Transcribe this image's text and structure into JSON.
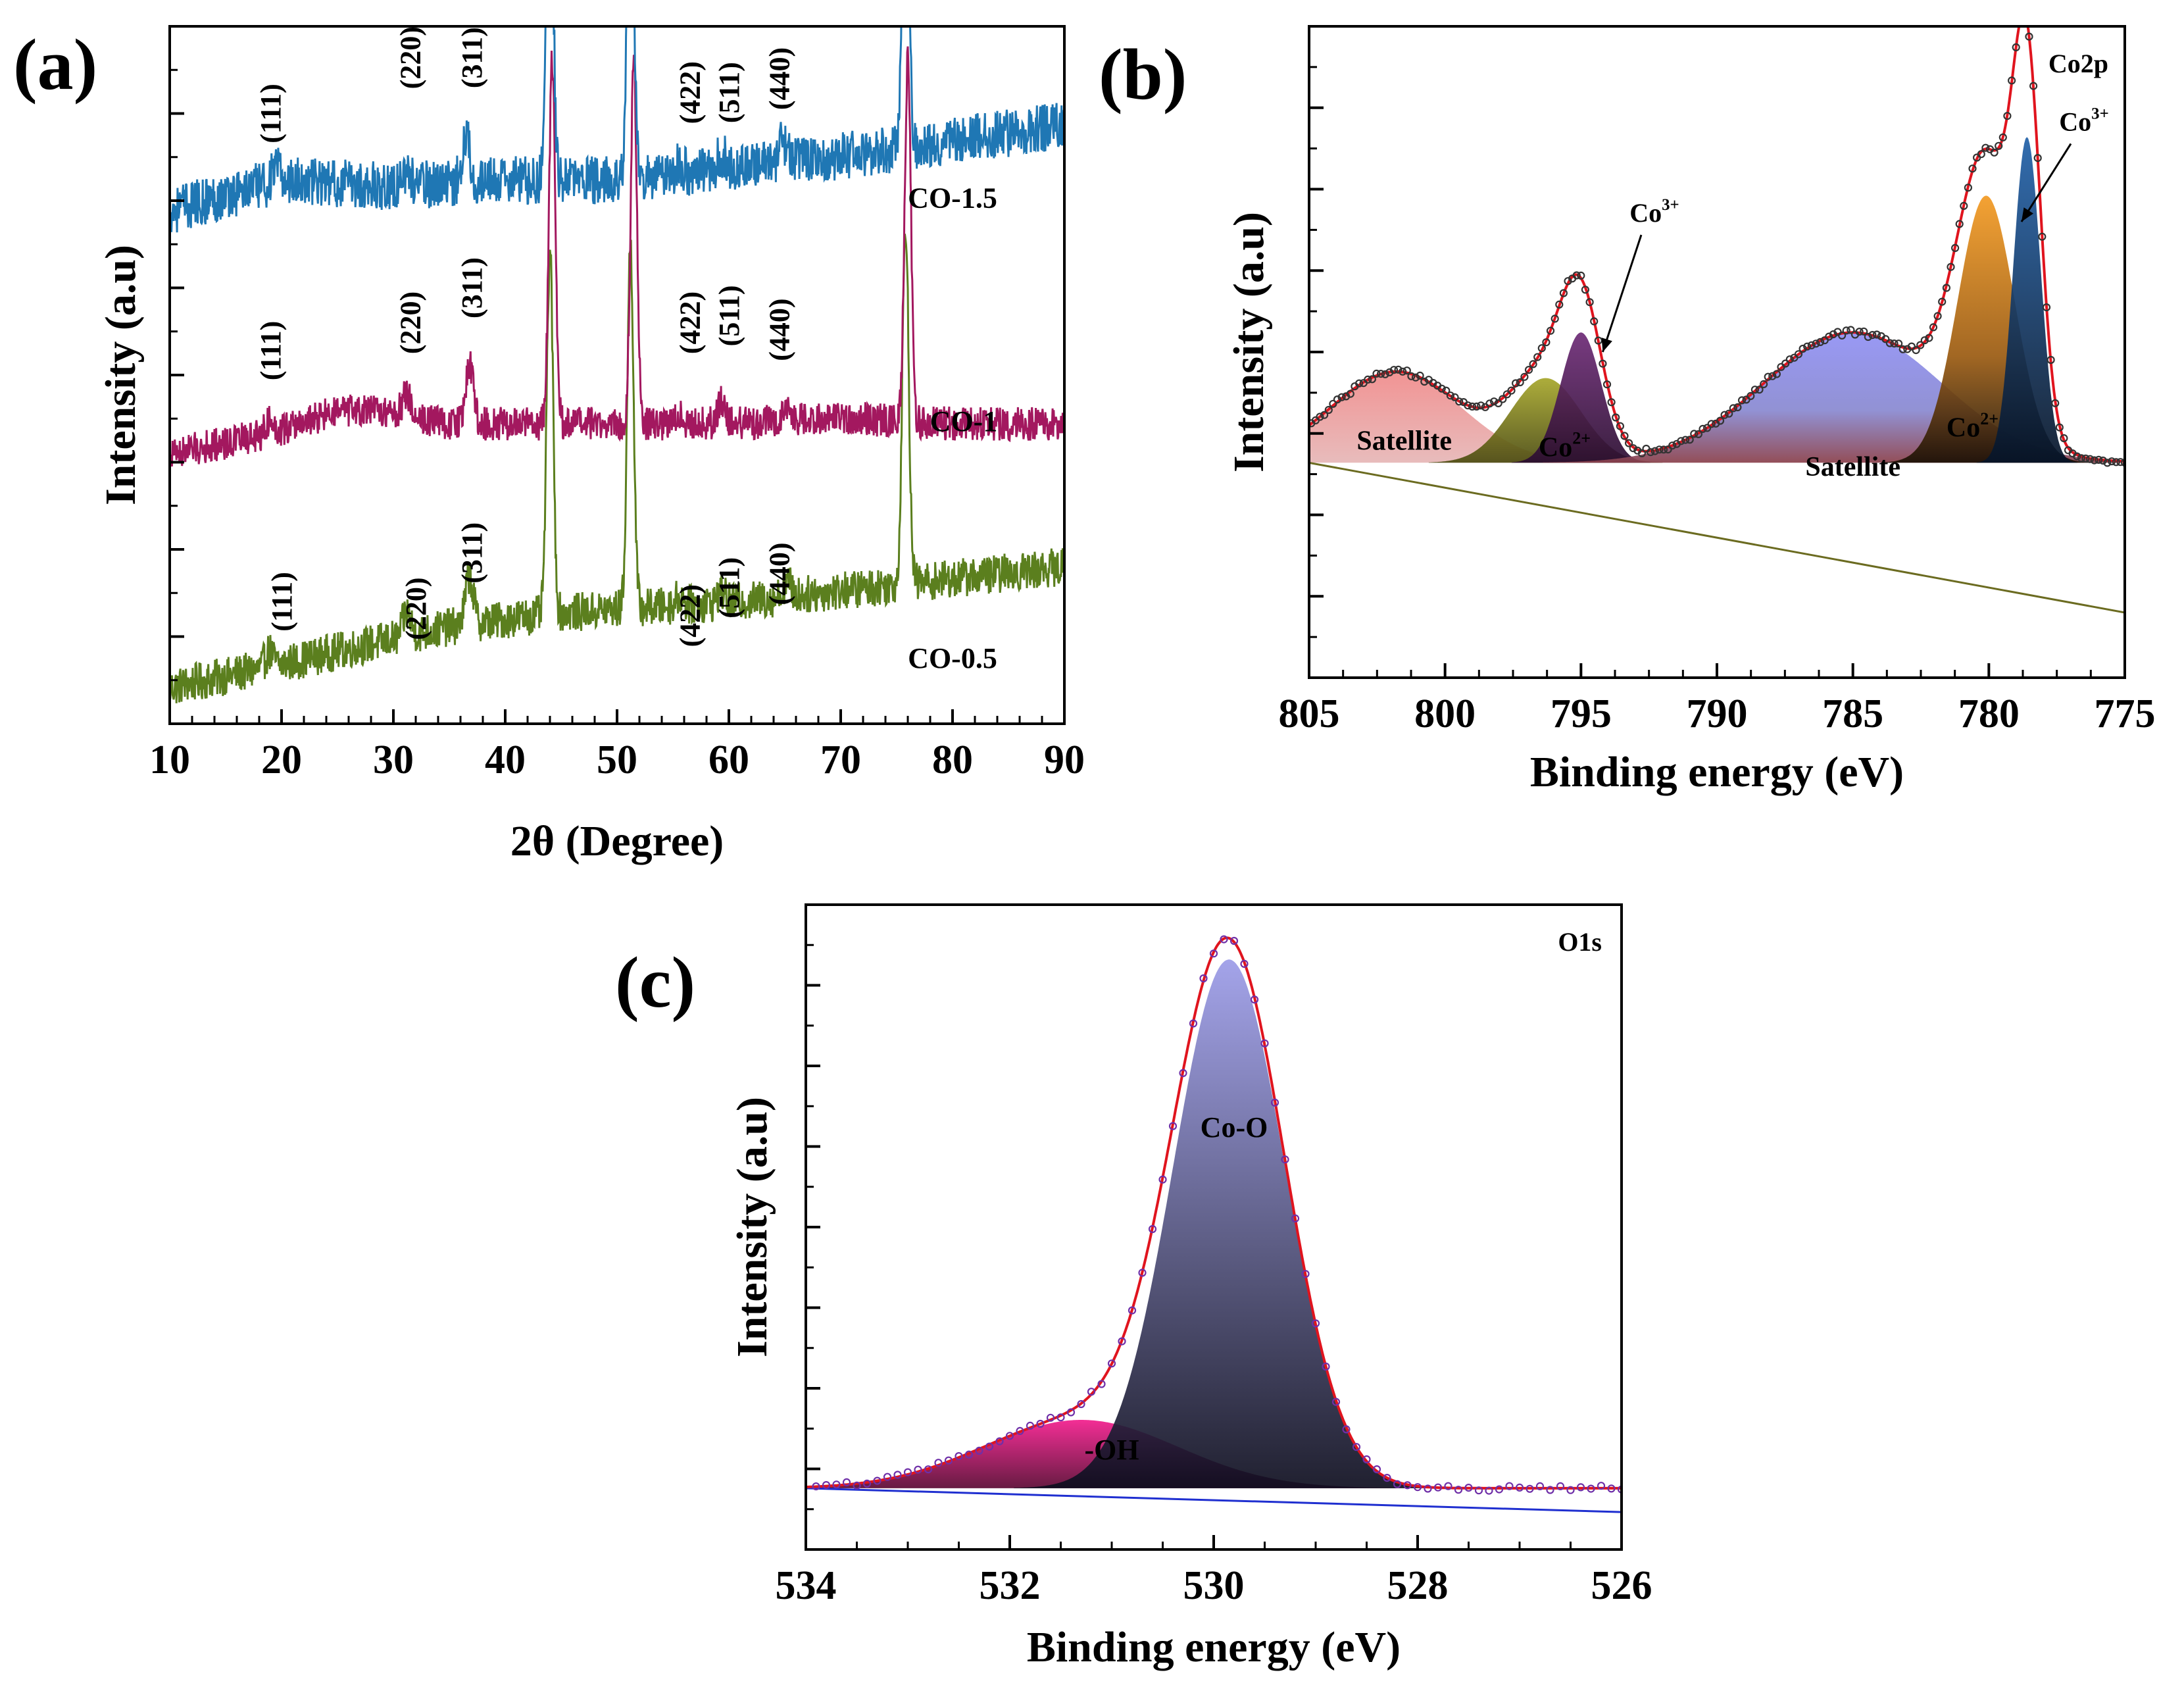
{
  "figure": {
    "panels": [
      {
        "id": "a",
        "label": "(a)"
      },
      {
        "id": "b",
        "label": "(b)"
      },
      {
        "id": "c",
        "label": "(c)"
      }
    ]
  },
  "chart_data": [
    {
      "id": "a",
      "type": "line",
      "panel_label": "(a)",
      "xlabel": "2θ (Degree)",
      "ylabel": "Intensity (a.u)",
      "xlim": [
        10,
        90
      ],
      "xticks": [
        10,
        20,
        30,
        40,
        50,
        60,
        70,
        80,
        90
      ],
      "ylim": [
        0,
        100
      ],
      "y_ticks_labeled": false,
      "grid": false,
      "series": [
        {
          "name": "CO-1.5",
          "color": "#5b7f1e",
          "offset": 66,
          "baseline": [
            [
              10,
              0
            ],
            [
              18,
              3
            ],
            [
              25,
              6
            ],
            [
              35,
              10
            ],
            [
              43,
              12
            ],
            [
              50,
              13
            ],
            [
              60,
              14
            ],
            [
              70,
              16
            ],
            [
              80,
              18
            ],
            [
              90,
              20
            ]
          ],
          "noise": 3.2,
          "peaks": [
            [
              18.9,
              2.5
            ],
            [
              31.2,
              4
            ],
            [
              36.8,
              8
            ],
            [
              44.0,
              60
            ],
            [
              51.2,
              60
            ],
            [
              55.6,
              1.5
            ],
            [
              59.3,
              2
            ],
            [
              65.2,
              2.5
            ],
            [
              75.8,
              60
            ]
          ]
        },
        {
          "name": "CO-1",
          "color": "#a3185f",
          "offset": 33,
          "baseline": [
            [
              10,
              0
            ],
            [
              18,
              3
            ],
            [
              25,
              7
            ],
            [
              30,
              7
            ],
            [
              35,
              5
            ],
            [
              43,
              5
            ],
            [
              50,
              5
            ],
            [
              60,
              5
            ],
            [
              70,
              6
            ],
            [
              80,
              5
            ],
            [
              90,
              5
            ]
          ],
          "noise": 2.8,
          "peaks": [
            [
              18.9,
              2
            ],
            [
              31.2,
              3.5
            ],
            [
              36.8,
              10
            ],
            [
              44.2,
              60
            ],
            [
              51.5,
              60
            ],
            [
              55.6,
              1.5
            ],
            [
              59.3,
              3.5
            ],
            [
              65.2,
              2.5
            ],
            [
              76.0,
              60
            ]
          ]
        },
        {
          "name": "CO-0.5",
          "color": "#1f77b4",
          "offset": 0,
          "baseline": [
            [
              10,
              0
            ],
            [
              20,
              5
            ],
            [
              30,
              4
            ],
            [
              40,
              5
            ],
            [
              50,
              5
            ],
            [
              60,
              7
            ],
            [
              70,
              9
            ],
            [
              78,
              11
            ],
            [
              90,
              14
            ]
          ],
          "noise": 4,
          "peaks": [
            [
              19.5,
              2
            ],
            [
              31.2,
              2.5
            ],
            [
              36.5,
              8
            ],
            [
              44.0,
              60
            ],
            [
              51.2,
              60
            ],
            [
              55.6,
              1.5
            ],
            [
              59.3,
              2.5
            ],
            [
              64.9,
              3.5
            ],
            [
              75.8,
              60
            ]
          ]
        }
      ],
      "annotations": [
        {
          "text": "(111)",
          "x": 19.0,
          "y": 87.5
        },
        {
          "text": "(220)",
          "x": 31.5,
          "y": 95.5
        },
        {
          "text": "(311)",
          "x": 37.0,
          "y": 95.5
        },
        {
          "text": "(422)",
          "x": 56.5,
          "y": 90.5
        },
        {
          "text": "(511)",
          "x": 60.0,
          "y": 90.5
        },
        {
          "text": "(440)",
          "x": 64.5,
          "y": 92.5
        },
        {
          "text": "(111)",
          "x": 19.0,
          "y": 53.5
        },
        {
          "text": "(220)",
          "x": 31.5,
          "y": 57.5
        },
        {
          "text": "(311)",
          "x": 37.0,
          "y": 62.5
        },
        {
          "text": "(422)",
          "x": 56.5,
          "y": 57.5
        },
        {
          "text": "(511)",
          "x": 60.0,
          "y": 58.5
        },
        {
          "text": "(440)",
          "x": 64.5,
          "y": 56.5
        },
        {
          "text": "(111)",
          "x": 20.0,
          "y": 17.5
        },
        {
          "text": "(220)",
          "x": 32.0,
          "y": 16.5
        },
        {
          "text": "(311)",
          "x": 37.0,
          "y": 24.5
        },
        {
          "text": "(422)",
          "x": 56.5,
          "y": 15.5
        },
        {
          "text": "(511)",
          "x": 60.0,
          "y": 19.5
        },
        {
          "text": "(440)",
          "x": 64.5,
          "y": 21.5
        },
        {
          "text": "CO-1.5",
          "x": 80,
          "y": 74
        },
        {
          "text": "CO-1",
          "x": 81,
          "y": 42
        },
        {
          "text": "CO-0.5",
          "x": 80,
          "y": 8
        }
      ]
    },
    {
      "id": "b",
      "type": "area",
      "panel_label": "(b)",
      "title": "Co2p",
      "xlabel": "Binding energy (eV)",
      "ylabel": "Intensity (a.u)",
      "xlim": [
        805,
        775
      ],
      "xticks": [
        805,
        800,
        795,
        790,
        785,
        780,
        775
      ],
      "ylim": [
        0,
        100
      ],
      "y_ticks_labeled": false,
      "grid": false,
      "background": [
        [
          805,
          33
        ],
        [
          775,
          10
        ]
      ],
      "components": [
        {
          "name": "Satellite",
          "center": 801.8,
          "height": 14,
          "width": 2.4,
          "color": "#e88080"
        },
        {
          "name": "Co2+",
          "center": 796.3,
          "height": 13,
          "width": 1.3,
          "color": "#8a8a20"
        },
        {
          "name": "Co3+",
          "center": 795.0,
          "height": 20,
          "width": 0.75,
          "color": "#5a1f60"
        },
        {
          "name": "Satellite",
          "center": 785.0,
          "height": 20,
          "width": 3.3,
          "color": "#8c8cf0"
        },
        {
          "name": "Co2+",
          "center": 780.1,
          "height": 41,
          "width": 1.05,
          "color": "#ee8a1a"
        },
        {
          "name": "Co3+",
          "center": 778.6,
          "height": 50,
          "width": 0.5,
          "color": "#1a4f8a"
        }
      ],
      "fit_color": "#e0141e",
      "data_color": "#333333",
      "annotations": [
        {
          "text": "Satellite",
          "x": 801.5,
          "y": 35
        },
        {
          "text": "Co2+",
          "x": 795.6,
          "y": 34
        },
        {
          "text": "Satellite",
          "x": 785.0,
          "y": 31
        },
        {
          "text": "Co2+",
          "x": 780.6,
          "y": 37
        },
        {
          "text": "Co3+",
          "x": 792.3,
          "y": 70,
          "arrow_to": [
            794.2,
            50
          ]
        },
        {
          "text": "Co3+",
          "x": 776.5,
          "y": 84,
          "arrow_to": [
            778.8,
            70
          ]
        }
      ]
    },
    {
      "id": "c",
      "type": "area",
      "panel_label": "(c)",
      "title": "O1s",
      "xlabel": "Binding energy (eV)",
      "ylabel": "Intensity (a.u)",
      "xlim": [
        534,
        526
      ],
      "xticks": [
        534,
        532,
        530,
        528,
        526
      ],
      "ylim": [
        0,
        100
      ],
      "y_ticks_labeled": false,
      "grid": false,
      "background": [
        [
          534,
          9.5
        ],
        [
          526,
          5.8
        ]
      ],
      "components": [
        {
          "name": "-OH",
          "center": 531.3,
          "height": 10.6,
          "width": 0.95,
          "color": "#e0147f"
        },
        {
          "name": "Co-O",
          "center": 529.85,
          "height": 82,
          "width": 0.55,
          "color": "#8f8fd8"
        }
      ],
      "fit_color": "#e0141e",
      "data_color": "#6f2fa8",
      "annotations": [
        {
          "text": "Co-O",
          "x": 529.8,
          "y": 64
        },
        {
          "text": "-OH",
          "x": 531.0,
          "y": 14
        }
      ]
    }
  ]
}
